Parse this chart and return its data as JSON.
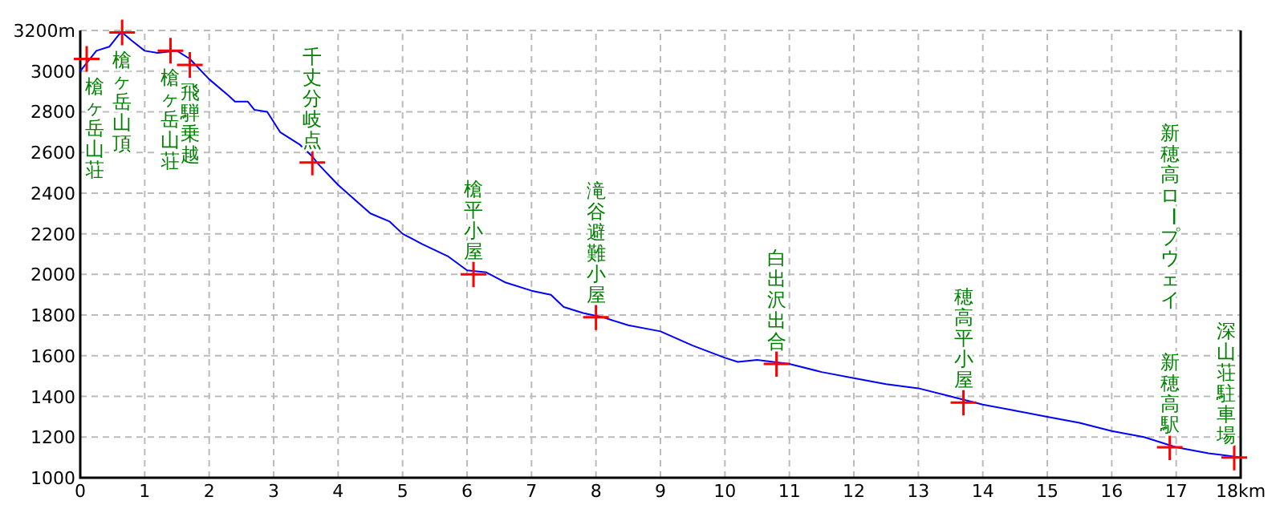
{
  "chart_data": {
    "type": "line",
    "xlim": [
      0,
      18
    ],
    "ylim": [
      1000,
      3200
    ],
    "xticks": [
      0,
      1,
      2,
      3,
      4,
      5,
      6,
      7,
      8,
      9,
      10,
      11,
      12,
      13,
      14,
      15,
      16,
      17,
      {
        "value": 18,
        "label": "18km"
      }
    ],
    "yticks": [
      1000,
      1200,
      1400,
      1600,
      1800,
      2000,
      2200,
      2400,
      2600,
      2800,
      3000,
      {
        "value": 3200,
        "label": "3200m"
      }
    ],
    "grid": true,
    "line_style": "solid",
    "series": [
      {
        "color": "#0000ff",
        "marker": "none",
        "x": [
          0,
          0.1,
          0.25,
          0.45,
          0.6,
          0.65,
          0.8,
          1.0,
          1.2,
          1.5,
          1.7,
          2.0,
          2.3,
          2.4,
          2.6,
          2.7,
          2.9,
          3.1,
          3.4,
          3.6,
          3.7,
          4.0,
          4.5,
          4.8,
          5.0,
          5.3,
          5.7,
          6.0,
          6.3,
          6.6,
          7.0,
          7.3,
          7.5,
          7.8,
          8.1,
          8.5,
          9.0,
          9.5,
          10.0,
          10.2,
          10.5,
          11.0,
          11.5,
          12.0,
          12.5,
          13.0,
          13.5,
          14.0,
          14.5,
          15.0,
          15.5,
          16.0,
          16.5,
          17.0,
          17.5,
          18.0
        ],
        "values": [
          3000,
          3040,
          3100,
          3120,
          3180,
          3190,
          3150,
          3100,
          3090,
          3100,
          3060,
          2960,
          2880,
          2850,
          2850,
          2810,
          2800,
          2700,
          2640,
          2580,
          2540,
          2440,
          2300,
          2260,
          2200,
          2150,
          2090,
          2020,
          2010,
          1960,
          1920,
          1900,
          1840,
          1810,
          1790,
          1750,
          1720,
          1650,
          1590,
          1570,
          1580,
          1560,
          1520,
          1490,
          1460,
          1440,
          1400,
          1360,
          1330,
          1300,
          1270,
          1230,
          1200,
          1150,
          1120,
          1100
        ]
      },
      {
        "type": "scatter",
        "color": "#ff0000",
        "marker": "cross",
        "x": [
          0.1,
          0.65,
          1.4,
          1.7,
          3.6,
          6.1,
          8.0,
          10.8,
          13.7,
          16.9,
          17.9
        ],
        "values": [
          3060,
          3190,
          3100,
          3030,
          2550,
          2000,
          1790,
          1560,
          1370,
          1150,
          1100
        ]
      }
    ],
    "annotations": [
      {
        "text": "槍ヶ岳山荘",
        "x": 0.1,
        "y": 3060
      },
      {
        "text": "槍ヶ岳山頂",
        "x": 0.65,
        "y": 3190
      },
      {
        "text": "槍ヶ岳山荘",
        "x": 1.4,
        "y": 3100
      },
      {
        "text": "飛騨乗越",
        "x": 1.7,
        "y": 3030
      },
      {
        "text": "千丈分岐点",
        "x": 3.6,
        "y": 2550
      },
      {
        "text": "槍平小屋",
        "x": 6.1,
        "y": 2000
      },
      {
        "text": "滝谷避難小屋",
        "x": 8.0,
        "y": 1790
      },
      {
        "text": "白出沢出合",
        "x": 10.8,
        "y": 1560
      },
      {
        "text": "穂高平小屋",
        "x": 13.7,
        "y": 1370
      },
      "新穂高ロープウェイ",
      {
        "text": "新穂高駅",
        "x": 16.9,
        "y": 1150
      },
      {
        "text": "深山荘駐車場",
        "x": 17.9,
        "y": 1100
      }
    ]
  }
}
